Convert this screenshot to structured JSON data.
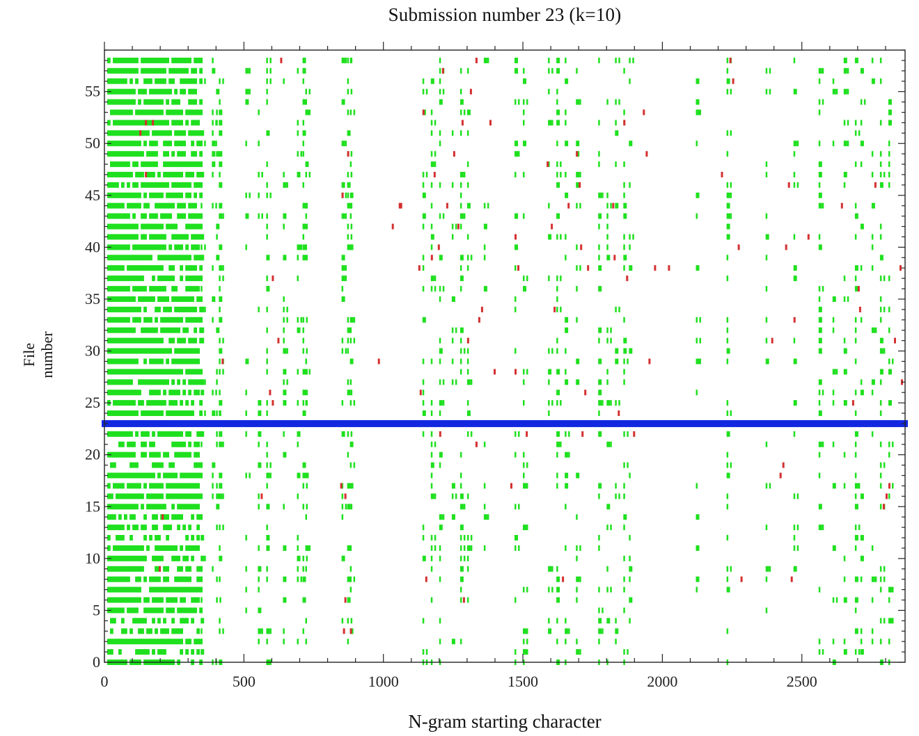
{
  "chart_data": {
    "type": "scatter",
    "title": "Submission number 23 (k=10)",
    "xlabel": "N-gram starting character",
    "ylabel": "File number",
    "xlim": [
      0,
      2870
    ],
    "ylim": [
      0,
      59
    ],
    "x_ticks": [
      "0",
      "500",
      "1000",
      "1500",
      "2000",
      "2500"
    ],
    "y_ticks": [
      "0",
      "5",
      "10",
      "15",
      "20",
      "25",
      "30",
      "35",
      "40",
      "45",
      "50",
      "55"
    ],
    "highlight_row": {
      "file": 23,
      "x_from": 0,
      "x_to": 2870
    },
    "colors": {
      "match": "#1fe01f",
      "highlight": "#1228e0",
      "partial": "#d43030",
      "axis": "#222222"
    },
    "series": [
      {
        "name": "",
        "color": "#1fe01f",
        "x_columns": [
          20,
          35,
          48,
          60,
          72,
          88,
          130,
          160,
          185,
          210,
          235,
          262,
          285,
          305,
          325,
          345,
          385,
          400,
          410,
          505,
          550,
          580,
          640,
          690,
          710,
          720,
          850,
          870,
          880,
          1140,
          1170,
          1200,
          1245,
          1275,
          1300,
          1360,
          1470,
          1500,
          1590,
          1620,
          1650,
          1690,
          1770,
          1800,
          1830,
          1860,
          1880,
          2120,
          2230,
          2370,
          2470,
          2560,
          2610,
          2650,
          2690,
          2710,
          2750,
          2780,
          2810
        ],
        "dense_x_max": 340,
        "row_density": {
          "dense": 0.78,
          "medium": 0.42,
          "sparse": 0.22
        },
        "sparse_rows": [
          1,
          3,
          4,
          12,
          13,
          14,
          19,
          21
        ]
      },
      {
        "name": "",
        "color": "#d43030",
        "points": [
          [
            145,
            52
          ],
          [
            125,
            51
          ],
          [
            170,
            52
          ],
          [
            195,
            9
          ],
          [
            205,
            14
          ],
          [
            145,
            47
          ],
          [
            630,
            58
          ],
          [
            600,
            37
          ],
          [
            590,
            26
          ],
          [
            600,
            25
          ],
          [
            620,
            31
          ],
          [
            420,
            29
          ],
          [
            560,
            16
          ],
          [
            850,
            45
          ],
          [
            860,
            16
          ],
          [
            860,
            6
          ],
          [
            855,
            3
          ],
          [
            880,
            3
          ],
          [
            870,
            49
          ],
          [
            845,
            17
          ],
          [
            980,
            29
          ],
          [
            1030,
            42
          ],
          [
            1055,
            44
          ],
          [
            1060,
            44
          ],
          [
            1125,
            38
          ],
          [
            1130,
            26
          ],
          [
            1140,
            53
          ],
          [
            1150,
            8
          ],
          [
            1170,
            39
          ],
          [
            1180,
            47
          ],
          [
            1195,
            40
          ],
          [
            1200,
            22
          ],
          [
            1210,
            57
          ],
          [
            1225,
            44
          ],
          [
            1250,
            49
          ],
          [
            1265,
            42
          ],
          [
            1280,
            52
          ],
          [
            1285,
            6
          ],
          [
            1300,
            31
          ],
          [
            1310,
            55
          ],
          [
            1330,
            21
          ],
          [
            1340,
            33
          ],
          [
            1350,
            34
          ],
          [
            1470,
            41
          ],
          [
            1480,
            38
          ],
          [
            1470,
            28
          ],
          [
            1510,
            22
          ],
          [
            1600,
            42
          ],
          [
            1610,
            34
          ],
          [
            1640,
            8
          ],
          [
            1660,
            44
          ],
          [
            1700,
            46
          ],
          [
            1705,
            40
          ],
          [
            1710,
            22
          ],
          [
            1720,
            26
          ],
          [
            1730,
            38
          ],
          [
            1820,
            44
          ],
          [
            1825,
            39
          ],
          [
            1840,
            24
          ],
          [
            1860,
            52
          ],
          [
            1870,
            37
          ],
          [
            1895,
            22
          ],
          [
            1930,
            53
          ],
          [
            1940,
            49
          ],
          [
            1950,
            29
          ],
          [
            1970,
            38
          ],
          [
            2020,
            38
          ],
          [
            2210,
            47
          ],
          [
            2240,
            58
          ],
          [
            2250,
            56
          ],
          [
            2270,
            40
          ],
          [
            2280,
            8
          ],
          [
            2390,
            31
          ],
          [
            2420,
            18
          ],
          [
            2430,
            19
          ],
          [
            2440,
            40
          ],
          [
            2450,
            46
          ],
          [
            2460,
            8
          ],
          [
            2470,
            33
          ],
          [
            2500,
            23
          ],
          [
            2520,
            41
          ],
          [
            2640,
            44
          ],
          [
            2680,
            25
          ],
          [
            2700,
            36
          ],
          [
            2705,
            34
          ],
          [
            2760,
            46
          ],
          [
            2790,
            15
          ],
          [
            2800,
            16
          ],
          [
            2810,
            17
          ],
          [
            2830,
            31
          ],
          [
            2850,
            38
          ],
          [
            2855,
            27
          ],
          [
            1330,
            58
          ],
          [
            1380,
            52
          ],
          [
            1395,
            28
          ],
          [
            1585,
            48
          ],
          [
            1455,
            17
          ],
          [
            1690,
            49
          ]
        ]
      }
    ]
  }
}
